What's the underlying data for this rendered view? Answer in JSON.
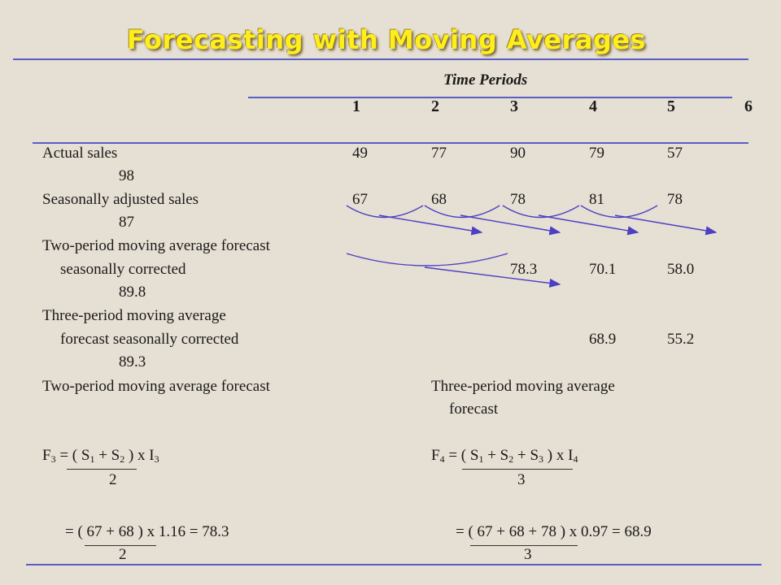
{
  "title": "Forecasting with Moving Averages",
  "time_periods_label": "Time Periods",
  "periods": [
    "1",
    "2",
    "3",
    "4",
    "5",
    "6"
  ],
  "rows": {
    "actual_label": "Actual sales",
    "actual_values": [
      "49",
      "77",
      "90",
      "79",
      "57"
    ],
    "actual_wrap": "98",
    "seasonal_label": "Seasonally adjusted sales",
    "seasonal_values": [
      "67",
      "68",
      "78",
      "81",
      "78"
    ],
    "seasonal_wrap": "87",
    "two_period_line1": "Two-period moving average forecast",
    "two_period_line2": "seasonally corrected",
    "two_period_values": [
      "78.3",
      "70.1",
      "58.0"
    ],
    "two_period_wrap": "89.8",
    "three_period_line1": "Three-period moving average",
    "three_period_line2": "forecast seasonally corrected",
    "three_period_values": [
      "68.9",
      "55.2"
    ],
    "three_period_wrap": "89.3"
  },
  "formulas": {
    "left_heading": "Two-period moving average forecast",
    "right_heading_line1": "Three-period moving average",
    "right_heading_line2": "forecast",
    "left_denominator": "2",
    "right_denominator": "3",
    "left_calc": "= ( 67 + 68 ) x 1.16 = 78.3",
    "right_calc": "= ( 67 + 68 + 78 ) x 0.97 = 68.9",
    "left_calc_denominator": "2",
    "right_calc_denominator": "3"
  },
  "colors": {
    "title": "#ffee1a",
    "rule": "#5a5ec8",
    "arrow": "#4b3fc4",
    "background": "#e6dfd3"
  }
}
